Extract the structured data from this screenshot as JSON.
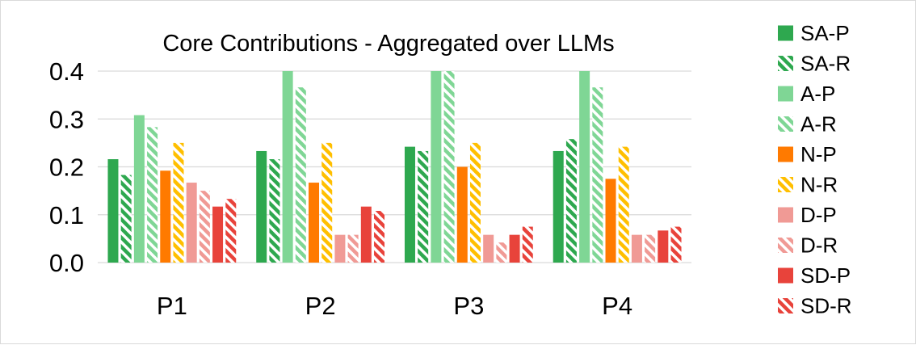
{
  "chart_data": {
    "type": "bar",
    "title": "Core Contributions - Aggregated over LLMs",
    "xlabel": "",
    "ylabel": "",
    "ylim": [
      0.0,
      0.4
    ],
    "yticks": [
      "0.0",
      "0.1",
      "0.2",
      "0.3",
      "0.4"
    ],
    "grid": true,
    "legend_position": "right",
    "categories": [
      "P1",
      "P2",
      "P3",
      "P4"
    ],
    "series": [
      {
        "name": "SA-P",
        "color": "#2ea84f",
        "pattern": "solid",
        "values": [
          0.216,
          0.233,
          0.242,
          0.233
        ]
      },
      {
        "name": "SA-R",
        "color": "#2ea84f",
        "pattern": "hatched",
        "values": [
          0.183,
          0.216,
          0.233,
          0.258
        ]
      },
      {
        "name": "A-P",
        "color": "#7fd695",
        "pattern": "solid",
        "values": [
          0.308,
          0.4,
          0.4,
          0.4
        ]
      },
      {
        "name": "A-R",
        "color": "#7fd695",
        "pattern": "hatched",
        "values": [
          0.283,
          0.366,
          0.4,
          0.366
        ]
      },
      {
        "name": "N-P",
        "color": "#ff7a00",
        "pattern": "solid",
        "values": [
          0.192,
          0.167,
          0.2,
          0.175
        ]
      },
      {
        "name": "N-R",
        "color": "#ffbf00",
        "pattern": "hatched",
        "values": [
          0.25,
          0.25,
          0.25,
          0.242
        ]
      },
      {
        "name": "D-P",
        "color": "#f09a95",
        "pattern": "solid",
        "values": [
          0.167,
          0.058,
          0.058,
          0.058
        ]
      },
      {
        "name": "D-R",
        "color": "#f09a95",
        "pattern": "hatched",
        "values": [
          0.15,
          0.058,
          0.042,
          0.058
        ]
      },
      {
        "name": "SD-P",
        "color": "#e8433b",
        "pattern": "solid",
        "values": [
          0.117,
          0.117,
          0.058,
          0.067
        ]
      },
      {
        "name": "SD-R",
        "color": "#e8433b",
        "pattern": "hatched",
        "values": [
          0.133,
          0.108,
          0.075,
          0.075
        ]
      }
    ]
  }
}
